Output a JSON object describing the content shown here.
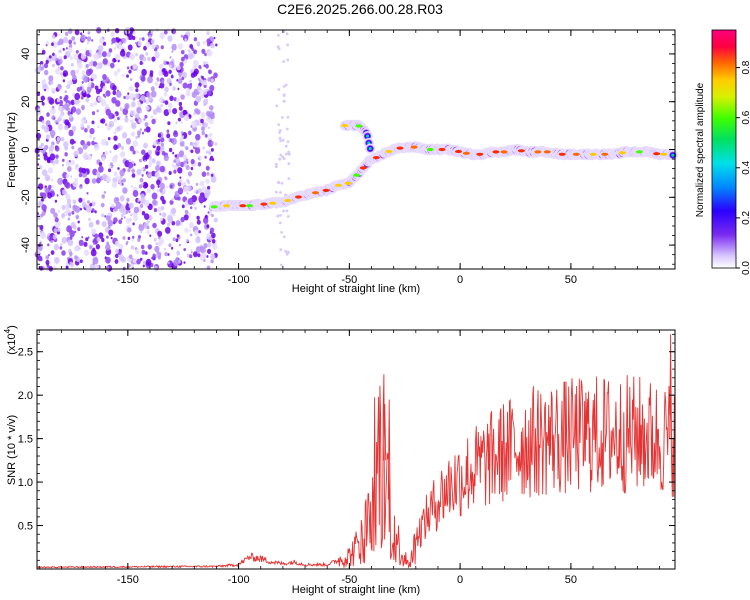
{
  "title": "C2E6.2025.266.00.28.R03",
  "chart_data": [
    {
      "type": "heatmap",
      "xlabel": "Height of straight line (km)",
      "ylabel": "Frequency (Hz)",
      "xlim": [
        -191,
        97
      ],
      "ylim": [
        -50,
        50
      ],
      "x_ticks": [
        -150,
        -100,
        -50,
        0,
        50
      ],
      "x_tick_labels": [
        "-150",
        "-100",
        "-50",
        "0",
        "50"
      ],
      "y_ticks": [
        -40,
        -20,
        0,
        20,
        40
      ],
      "y_tick_labels": [
        "-40",
        "-20",
        "0",
        "20",
        "40"
      ],
      "colorbar": {
        "label": "Normalized spectral amplitude",
        "range": [
          0,
          0.95
        ],
        "ticks": [
          0.0,
          0.2,
          0.4,
          0.6,
          0.8
        ],
        "tick_labels": [
          "0.0",
          "0.2",
          "0.4",
          "0.6",
          "0.8"
        ]
      },
      "track": {
        "x": [
          -111,
          -105,
          -100,
          -95,
          -90,
          -85,
          -80,
          -75,
          -70,
          -65,
          -60,
          -55,
          -50,
          -47,
          -45,
          -43,
          -41,
          -39,
          -37,
          -35,
          -30,
          -25,
          -20,
          -15,
          -10,
          -5,
          0,
          5,
          10,
          15,
          20,
          25,
          30,
          35,
          40,
          45,
          50,
          55,
          60,
          65,
          70,
          75,
          80,
          85,
          90,
          95
        ],
        "y": [
          -24,
          -23.5,
          -23.5,
          -23.5,
          -23,
          -22.5,
          -22,
          -20.5,
          -19,
          -18,
          -17,
          -15,
          -14,
          -11,
          -9,
          -7,
          -5,
          -4,
          -3,
          -2,
          0,
          1,
          1,
          0,
          0,
          0,
          -1,
          -2,
          -2,
          -1,
          -1,
          0,
          -1,
          -1,
          -1,
          -2,
          -2,
          -2,
          -2,
          -2,
          -2,
          -1,
          -1,
          -1,
          -2,
          -2
        ]
      },
      "branch": {
        "x": [
          -52,
          -49,
          -46,
          -44,
          -42,
          -41,
          -40
        ],
        "y": [
          10,
          10,
          10,
          9,
          6,
          2,
          -2
        ]
      }
    },
    {
      "type": "line",
      "xlabel": "Height of straight line (km)",
      "ylabel": "SNR (10 * v/v)",
      "y_multiplier_label": "(x10",
      "y_multiplier_exponent": "4",
      "y_multiplier_close": ")",
      "xlim": [
        -191,
        97
      ],
      "ylim": [
        0,
        2.75
      ],
      "x_ticks": [
        -150,
        -100,
        -50,
        0,
        50
      ],
      "x_tick_labels": [
        "-150",
        "-100",
        "-50",
        "0",
        "50"
      ],
      "y_ticks": [
        0.5,
        1.0,
        1.5,
        2.0,
        2.5
      ],
      "y_tick_labels": [
        "0.5",
        "1.0",
        "1.5",
        "2.0",
        "2.5"
      ],
      "color": "#e53333",
      "envelope": {
        "x": [
          -191,
          -110,
          -100,
          -95,
          -90,
          -85,
          -80,
          -75,
          -70,
          -60,
          -55,
          -50,
          -45,
          -42,
          -40,
          -38,
          -36,
          -34,
          -32,
          -30,
          -28,
          -26,
          -24,
          -22,
          -20,
          -15,
          -10,
          -5,
          0,
          10,
          20,
          30,
          40,
          50,
          60,
          70,
          80,
          90,
          97
        ],
        "y": [
          0.02,
          0.03,
          0.05,
          0.14,
          0.12,
          0.08,
          0.06,
          0.08,
          0.05,
          0.05,
          0.1,
          0.15,
          0.3,
          0.5,
          0.7,
          1.25,
          1.3,
          1.25,
          0.8,
          0.5,
          0.3,
          0.2,
          0.12,
          0.1,
          0.35,
          0.6,
          0.8,
          0.95,
          1.05,
          1.2,
          1.35,
          1.45,
          1.5,
          1.52,
          1.55,
          1.55,
          1.55,
          1.5,
          1.5
        ]
      },
      "peaks": [
        {
          "x": -34,
          "y": 1.9
        },
        {
          "x": -32,
          "y": 1.95
        },
        {
          "x": 95,
          "y": 2.7
        }
      ]
    }
  ]
}
